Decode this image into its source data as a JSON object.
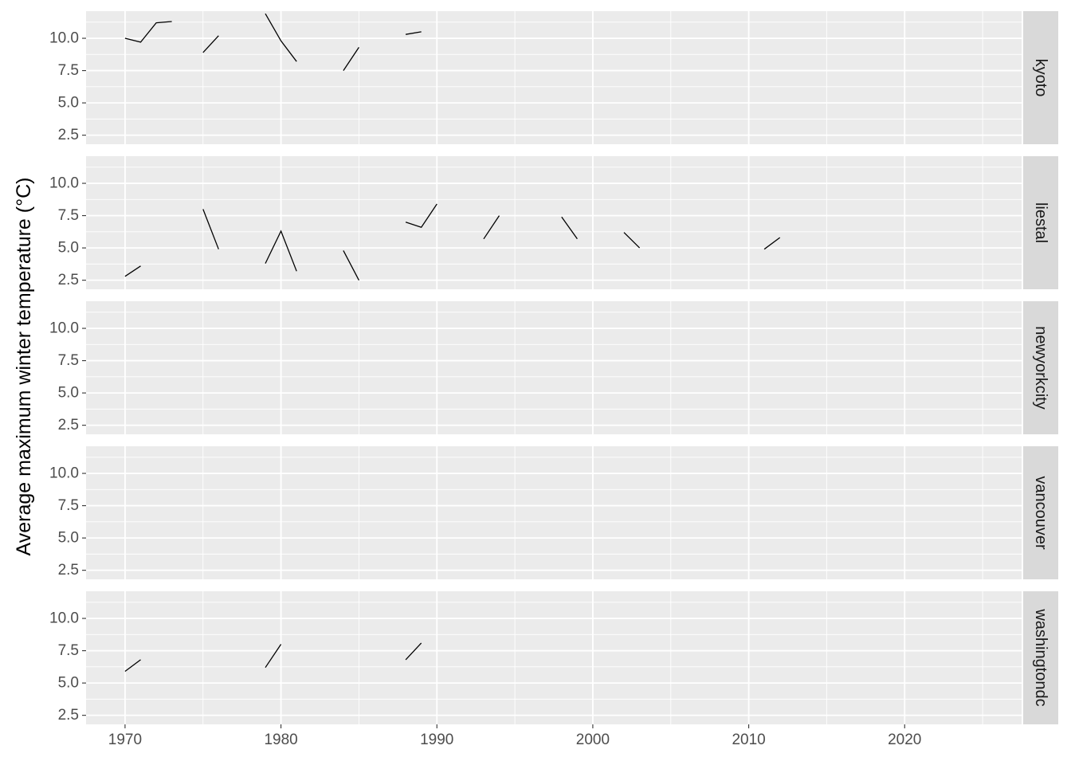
{
  "chart_data": {
    "type": "line",
    "facet": "rows",
    "ylabel": "Average maximum winter temperature (°C)",
    "xlabel": "",
    "xlim": [
      1967.5,
      2027.5
    ],
    "ylim": [
      1.8,
      12.1
    ],
    "x_ticks": [
      1970,
      1980,
      1990,
      2000,
      2010,
      2020
    ],
    "y_ticks": [
      2.5,
      5.0,
      7.5,
      10.0
    ],
    "y_tick_labels": [
      "2.5",
      "5.0",
      "7.5",
      "10.0"
    ],
    "grid": true,
    "line_color": "#000000",
    "panel_background": "#ebebeb",
    "strip_background": "#d9d9d9",
    "grid_color": "#ffffff",
    "panels": [
      {
        "label": "kyoto",
        "segments": [
          [
            [
              1970,
              10.0
            ],
            [
              1971,
              9.7
            ],
            [
              1972,
              11.2
            ],
            [
              1973,
              11.3
            ]
          ],
          [
            [
              1975,
              8.9
            ],
            [
              1976,
              10.2
            ]
          ],
          [
            [
              1979,
              11.9
            ],
            [
              1980,
              9.8
            ],
            [
              1981,
              8.2
            ]
          ],
          [
            [
              1984,
              7.5
            ],
            [
              1985,
              9.3
            ]
          ],
          [
            [
              1988,
              10.3
            ],
            [
              1989,
              10.5
            ]
          ]
        ]
      },
      {
        "label": "liestal",
        "segments": [
          [
            [
              1970,
              2.8
            ],
            [
              1971,
              3.6
            ]
          ],
          [
            [
              1975,
              8.0
            ],
            [
              1976,
              4.9
            ]
          ],
          [
            [
              1979,
              3.8
            ],
            [
              1980,
              6.3
            ],
            [
              1981,
              3.2
            ]
          ],
          [
            [
              1984,
              4.8
            ],
            [
              1985,
              2.5
            ]
          ],
          [
            [
              1988,
              7.0
            ],
            [
              1989,
              6.6
            ],
            [
              1990,
              8.4
            ]
          ],
          [
            [
              1993,
              5.7
            ],
            [
              1994,
              7.5
            ]
          ],
          [
            [
              1998,
              7.4
            ],
            [
              1999,
              5.7
            ]
          ],
          [
            [
              2002,
              6.2
            ],
            [
              2003,
              5.0
            ]
          ],
          [
            [
              2011,
              4.9
            ],
            [
              2012,
              5.8
            ]
          ]
        ]
      },
      {
        "label": "newyorkcity",
        "segments": []
      },
      {
        "label": "vancouver",
        "segments": []
      },
      {
        "label": "washingtondc",
        "segments": [
          [
            [
              1970,
              5.9
            ],
            [
              1971,
              6.8
            ]
          ],
          [
            [
              1979,
              6.2
            ],
            [
              1980,
              8.0
            ]
          ],
          [
            [
              1988,
              6.8
            ],
            [
              1989,
              8.1
            ]
          ]
        ]
      }
    ]
  }
}
